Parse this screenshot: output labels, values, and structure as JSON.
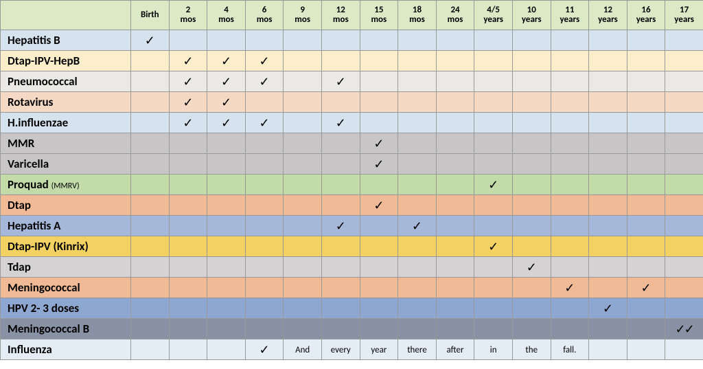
{
  "headers": [
    "Birth",
    "2 mos",
    "4 mos",
    "6 mos",
    "9 mos",
    "12 mos",
    "15 mos",
    "18 mos",
    "24 mos",
    "4/5 years",
    "10 years",
    "11 years",
    "12 years",
    "16 years",
    "17 years"
  ],
  "header_bg": "#dbe9c7",
  "check_glyph": "✓",
  "double_check_glyph": "✓✓",
  "rows": [
    {
      "label": "Hepatitis B",
      "bg": "#d6e3ef",
      "cells": [
        "c",
        "",
        "",
        "",
        "",
        "",
        "",
        "",
        "",
        "",
        "",
        "",
        "",
        "",
        ""
      ]
    },
    {
      "label": "Dtap-IPV-HepB",
      "bg": "#fceecb",
      "cells": [
        "",
        "c",
        "c",
        "c",
        "",
        "",
        "",
        "",
        "",
        "",
        "",
        "",
        "",
        "",
        ""
      ]
    },
    {
      "label": "Pneumococcal",
      "bg": "#eae9e6",
      "cells": [
        "",
        "c",
        "c",
        "c",
        "",
        "c",
        "",
        "",
        "",
        "",
        "",
        "",
        "",
        "",
        ""
      ]
    },
    {
      "label": "Rotavirus",
      "bg": "#f6d9c5",
      "cells": [
        "",
        "c",
        "c",
        "",
        "",
        "",
        "",
        "",
        "",
        "",
        "",
        "",
        "",
        "",
        ""
      ]
    },
    {
      "label": "H.influenzae",
      "bg": "#d6e3ef",
      "cells": [
        "",
        "c",
        "c",
        "c",
        "",
        "c",
        "",
        "",
        "",
        "",
        "",
        "",
        "",
        "",
        ""
      ]
    },
    {
      "label": "MMR",
      "bg": "#c7c5c5",
      "cells": [
        "",
        "",
        "",
        "",
        "",
        "",
        "c",
        "",
        "",
        "",
        "",
        "",
        "",
        "",
        ""
      ]
    },
    {
      "label": "Varicella",
      "bg": "#c7c5c5",
      "cells": [
        "",
        "",
        "",
        "",
        "",
        "",
        "c",
        "",
        "",
        "",
        "",
        "",
        "",
        "",
        ""
      ]
    },
    {
      "label": "Proquad ",
      "label_suffix": "(MMRV)",
      "bg": "#c2dba9",
      "cells": [
        "",
        "",
        "",
        "",
        "",
        "",
        "",
        "",
        "",
        "c",
        "",
        "",
        "",
        "",
        ""
      ]
    },
    {
      "label": "Dtap",
      "bg": "#efba95",
      "cells": [
        "",
        "",
        "",
        "",
        "",
        "",
        "c",
        "",
        "",
        "",
        "",
        "",
        "",
        "",
        ""
      ]
    },
    {
      "label": "Hepatitis A",
      "bg": "#a6b8d9",
      "cells": [
        "",
        "",
        "",
        "",
        "",
        "c",
        "",
        "c",
        "",
        "",
        "",
        "",
        "",
        "",
        ""
      ]
    },
    {
      "label": "Dtap-IPV (Kinrix)",
      "bg": "#f3d162",
      "cells": [
        "",
        "",
        "",
        "",
        "",
        "",
        "",
        "",
        "",
        "c",
        "",
        "",
        "",
        "",
        ""
      ]
    },
    {
      "label": "Tdap",
      "bg": "#d4d2d2",
      "cells": [
        "",
        "",
        "",
        "",
        "",
        "",
        "",
        "",
        "",
        "",
        "c",
        "",
        "",
        "",
        ""
      ]
    },
    {
      "label": "Meningococcal",
      "bg": "#efba95",
      "cells": [
        "",
        "",
        "",
        "",
        "",
        "",
        "",
        "",
        "",
        "",
        "",
        "c",
        "",
        "c",
        ""
      ]
    },
    {
      "label": "HPV 2- 3 doses",
      "bg": "#8ea7d0",
      "cells": [
        "",
        "",
        "",
        "",
        "",
        "",
        "",
        "",
        "",
        "",
        "",
        "",
        "c",
        "",
        ""
      ]
    },
    {
      "label": "Meningococcal B",
      "bg": "#8992a5",
      "cells": [
        "",
        "",
        "",
        "",
        "",
        "",
        "",
        "",
        "",
        "",
        "",
        "",
        "",
        "",
        "cc"
      ]
    },
    {
      "label": "Influenza",
      "bg": "#e4edf6",
      "cells": [
        "",
        "",
        "",
        "c",
        "And",
        "every",
        "year",
        "there",
        "after",
        "in",
        "the",
        "fall.",
        "",
        "",
        ""
      ]
    }
  ]
}
